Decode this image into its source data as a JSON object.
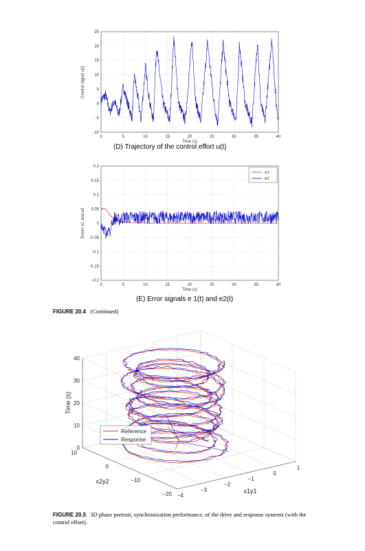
{
  "chart_data": [
    {
      "type": "line",
      "panel": "D",
      "caption": "(D) Trajectory of the control effort u(t)",
      "xlabel": "Time (s)",
      "ylabel": "Control signal u(t)",
      "xlim": [
        0,
        40
      ],
      "ylim": [
        -10,
        25
      ],
      "xticks": [
        0,
        5,
        10,
        15,
        20,
        25,
        30,
        35,
        40
      ],
      "yticks": [
        -10,
        -5,
        0,
        5,
        10,
        15,
        20,
        25
      ],
      "grid": true,
      "color": "#1010cc",
      "series": [
        {
          "x": [
            0,
            1,
            2,
            3,
            4,
            5,
            6,
            7,
            7.5,
            8.5,
            9,
            10,
            11,
            11.8,
            12.5,
            14,
            15.5,
            16.4,
            17.5,
            19,
            20.5,
            21.4,
            22.5,
            24,
            25.5,
            26.3,
            27.5,
            29,
            30.5,
            31.2,
            32.5,
            34,
            35.3,
            36,
            37,
            38.5,
            39.5,
            40
          ],
          "y": [
            1,
            3,
            -3,
            1,
            -4,
            6,
            0,
            -5,
            10,
            0,
            -6,
            13,
            0,
            -6,
            20,
            0,
            -6,
            23,
            0,
            -6,
            22,
            0,
            -6,
            21,
            0,
            -7,
            21,
            0,
            -6,
            21,
            0,
            -7,
            22,
            0,
            -6,
            23,
            0,
            -5
          ]
        }
      ]
    },
    {
      "type": "line",
      "panel": "E",
      "caption": "(E) Error signals e1(t) and e2(t)",
      "xlabel": "Time (s)",
      "ylabel": "Errors e1 and e2",
      "xlim": [
        0,
        40
      ],
      "ylim": [
        -0.2,
        0.2
      ],
      "xticks": [
        0,
        5,
        10,
        15,
        20,
        25,
        30,
        35,
        40
      ],
      "yticks": [
        -0.2,
        -0.15,
        -0.1,
        -0.05,
        0,
        0.05,
        0.1,
        0.15,
        0.2
      ],
      "grid": true,
      "legend_position": "top-right",
      "series": [
        {
          "name": "e1",
          "color": "#e03020",
          "x": [
            0,
            1,
            2,
            3,
            4,
            5,
            10,
            20,
            30,
            40
          ],
          "y": [
            0.05,
            0.05,
            0.03,
            0.01,
            0.005,
            0.003,
            0,
            0,
            0,
            0
          ]
        },
        {
          "name": "e2",
          "color": "#1010cc",
          "x": [
            0,
            1,
            2,
            3,
            4,
            5,
            10,
            20,
            30,
            40
          ],
          "y": [
            0,
            -0.03,
            -0.02,
            0.02,
            0.01,
            0.02,
            0.02,
            0.02,
            0.02,
            0.02
          ]
        }
      ]
    },
    {
      "type": "line",
      "panel": "3D",
      "xlabel": "x1y1",
      "ylabel": "x2y2",
      "zlabel": "Time (s)",
      "xlim": [
        -4,
        1
      ],
      "ylim": [
        -20,
        10
      ],
      "zlim": [
        0,
        40
      ],
      "xticks": [
        -4,
        -3,
        -2,
        -1,
        0,
        1
      ],
      "yticks": [
        -20,
        -10,
        0,
        10
      ],
      "zticks": [
        0,
        10,
        20,
        30,
        40
      ],
      "grid": true,
      "legend_position": "bottom-left",
      "series": [
        {
          "name": "Reference",
          "color": "#e03020"
        },
        {
          "name": "Response",
          "color": "#1010cc"
        }
      ]
    }
  ],
  "captions": {
    "panel_d": "(D) Trajectory of the control effort u(t)",
    "panel_e": "(E) Error signals e 1(t) and e2(t)",
    "fig_20_4_label": "FIGURE 20.4",
    "fig_20_4_text": "(Continued)",
    "fig_20_5_label": "FIGURE 20.5",
    "fig_20_5_text": "3D phase portrait, synchronization performance, of the drive and response systems (with the control effort)."
  }
}
